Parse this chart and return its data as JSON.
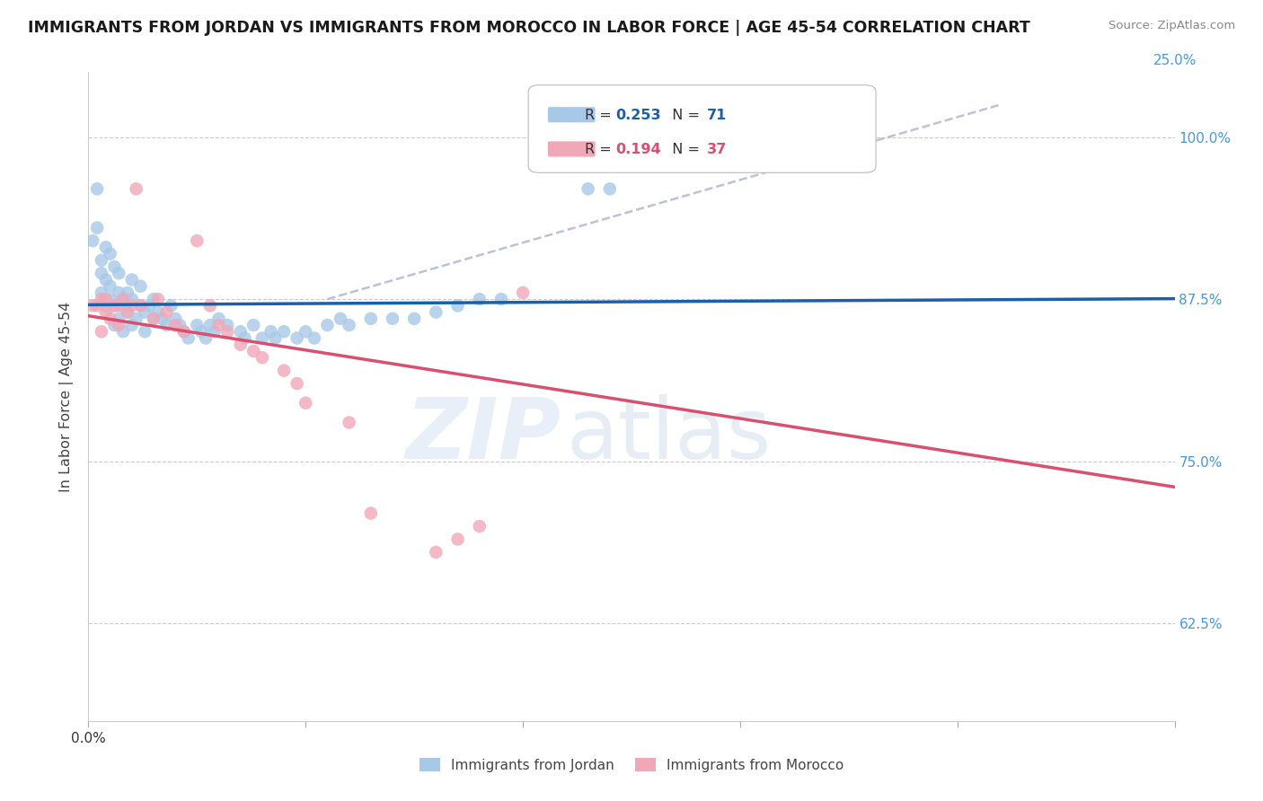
{
  "title": "IMMIGRANTS FROM JORDAN VS IMMIGRANTS FROM MOROCCO IN LABOR FORCE | AGE 45-54 CORRELATION CHART",
  "source": "Source: ZipAtlas.com",
  "ylabel": "In Labor Force | Age 45-54",
  "xlim": [
    0.0,
    0.25
  ],
  "ylim": [
    0.55,
    1.05
  ],
  "xtick_positions": [
    0.0,
    0.05,
    0.1,
    0.15,
    0.2,
    0.25
  ],
  "ytick_positions": [
    0.625,
    0.75,
    0.875,
    1.0
  ],
  "yticklabels": [
    "62.5%",
    "75.0%",
    "87.5%",
    "100.0%"
  ],
  "jordan_R": 0.253,
  "jordan_N": 71,
  "morocco_R": 0.194,
  "morocco_N": 37,
  "jordan_color": "#a8c8e8",
  "morocco_color": "#f0a8b8",
  "jordan_line_color": "#1a5faa",
  "morocco_line_color": "#d85070",
  "dashed_line_color": "#b0b8d0",
  "jordan_scatter_x": [
    0.001,
    0.002,
    0.002,
    0.003,
    0.003,
    0.003,
    0.004,
    0.004,
    0.004,
    0.005,
    0.005,
    0.005,
    0.006,
    0.006,
    0.006,
    0.007,
    0.007,
    0.007,
    0.008,
    0.008,
    0.008,
    0.009,
    0.009,
    0.01,
    0.01,
    0.01,
    0.011,
    0.012,
    0.012,
    0.013,
    0.013,
    0.014,
    0.015,
    0.015,
    0.016,
    0.017,
    0.018,
    0.019,
    0.02,
    0.021,
    0.022,
    0.023,
    0.025,
    0.026,
    0.027,
    0.028,
    0.029,
    0.03,
    0.032,
    0.035,
    0.036,
    0.038,
    0.04,
    0.042,
    0.043,
    0.045,
    0.048,
    0.05,
    0.052,
    0.055,
    0.058,
    0.06,
    0.065,
    0.07,
    0.075,
    0.08,
    0.085,
    0.09,
    0.095,
    0.115,
    0.12
  ],
  "jordan_scatter_y": [
    0.92,
    0.93,
    0.96,
    0.895,
    0.905,
    0.88,
    0.87,
    0.89,
    0.915,
    0.875,
    0.91,
    0.885,
    0.9,
    0.87,
    0.855,
    0.88,
    0.86,
    0.895,
    0.87,
    0.85,
    0.875,
    0.865,
    0.88,
    0.855,
    0.875,
    0.89,
    0.86,
    0.87,
    0.885,
    0.865,
    0.85,
    0.87,
    0.86,
    0.875,
    0.865,
    0.86,
    0.855,
    0.87,
    0.86,
    0.855,
    0.85,
    0.845,
    0.855,
    0.85,
    0.845,
    0.855,
    0.85,
    0.86,
    0.855,
    0.85,
    0.845,
    0.855,
    0.845,
    0.85,
    0.845,
    0.85,
    0.845,
    0.85,
    0.845,
    0.855,
    0.86,
    0.855,
    0.86,
    0.86,
    0.86,
    0.865,
    0.87,
    0.875,
    0.875,
    0.96,
    0.96
  ],
  "morocco_scatter_x": [
    0.001,
    0.002,
    0.003,
    0.003,
    0.004,
    0.004,
    0.005,
    0.006,
    0.007,
    0.007,
    0.008,
    0.009,
    0.01,
    0.011,
    0.012,
    0.015,
    0.016,
    0.018,
    0.02,
    0.022,
    0.025,
    0.028,
    0.03,
    0.032,
    0.035,
    0.038,
    0.04,
    0.045,
    0.048,
    0.05,
    0.06,
    0.065,
    0.08,
    0.085,
    0.09,
    0.1,
    0.16
  ],
  "morocco_scatter_y": [
    0.87,
    0.87,
    0.875,
    0.85,
    0.865,
    0.875,
    0.86,
    0.87,
    0.855,
    0.87,
    0.875,
    0.865,
    0.87,
    0.96,
    0.87,
    0.86,
    0.875,
    0.865,
    0.855,
    0.85,
    0.92,
    0.87,
    0.855,
    0.85,
    0.84,
    0.835,
    0.83,
    0.82,
    0.81,
    0.795,
    0.78,
    0.71,
    0.68,
    0.69,
    0.7,
    0.88,
    1.0
  ],
  "watermark_zip": "ZIP",
  "watermark_atlas": "atlas",
  "background_color": "#ffffff",
  "grid_color": "#cccccc",
  "tick_color": "#4499dd"
}
